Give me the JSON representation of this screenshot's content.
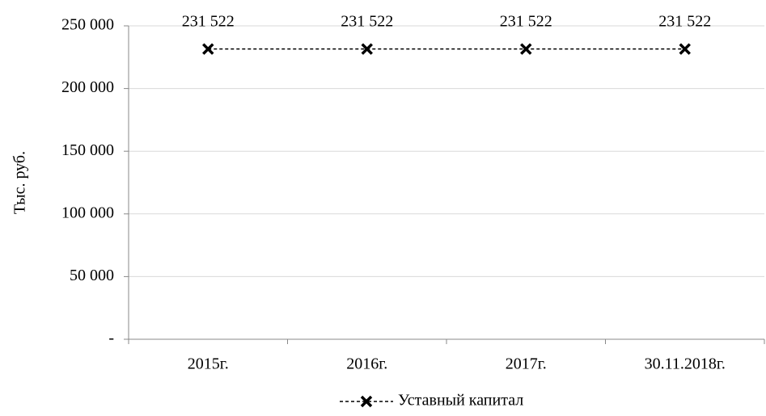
{
  "chart_data": {
    "type": "line",
    "y_label": "Тыс. руб.",
    "categories": [
      "2015г.",
      "2016г.",
      "2017г.",
      "30.11.2018г."
    ],
    "series": [
      {
        "name": "Уставный капитал",
        "color": "#000000",
        "values": [
          231522,
          231522,
          231522,
          231522
        ],
        "value_labels": [
          "231 522",
          "231 522",
          "231 522",
          "231 522"
        ]
      }
    ],
    "ylim": [
      0,
      250000
    ],
    "yticks": [
      {
        "value": 0,
        "label": "-"
      },
      {
        "value": 50000,
        "label": "50 000"
      },
      {
        "value": 100000,
        "label": "100 000"
      },
      {
        "value": 150000,
        "label": "150 000"
      },
      {
        "value": 200000,
        "label": "200 000"
      },
      {
        "value": 250000,
        "label": "250 000"
      }
    ],
    "grid": true,
    "legend": "bottom"
  }
}
